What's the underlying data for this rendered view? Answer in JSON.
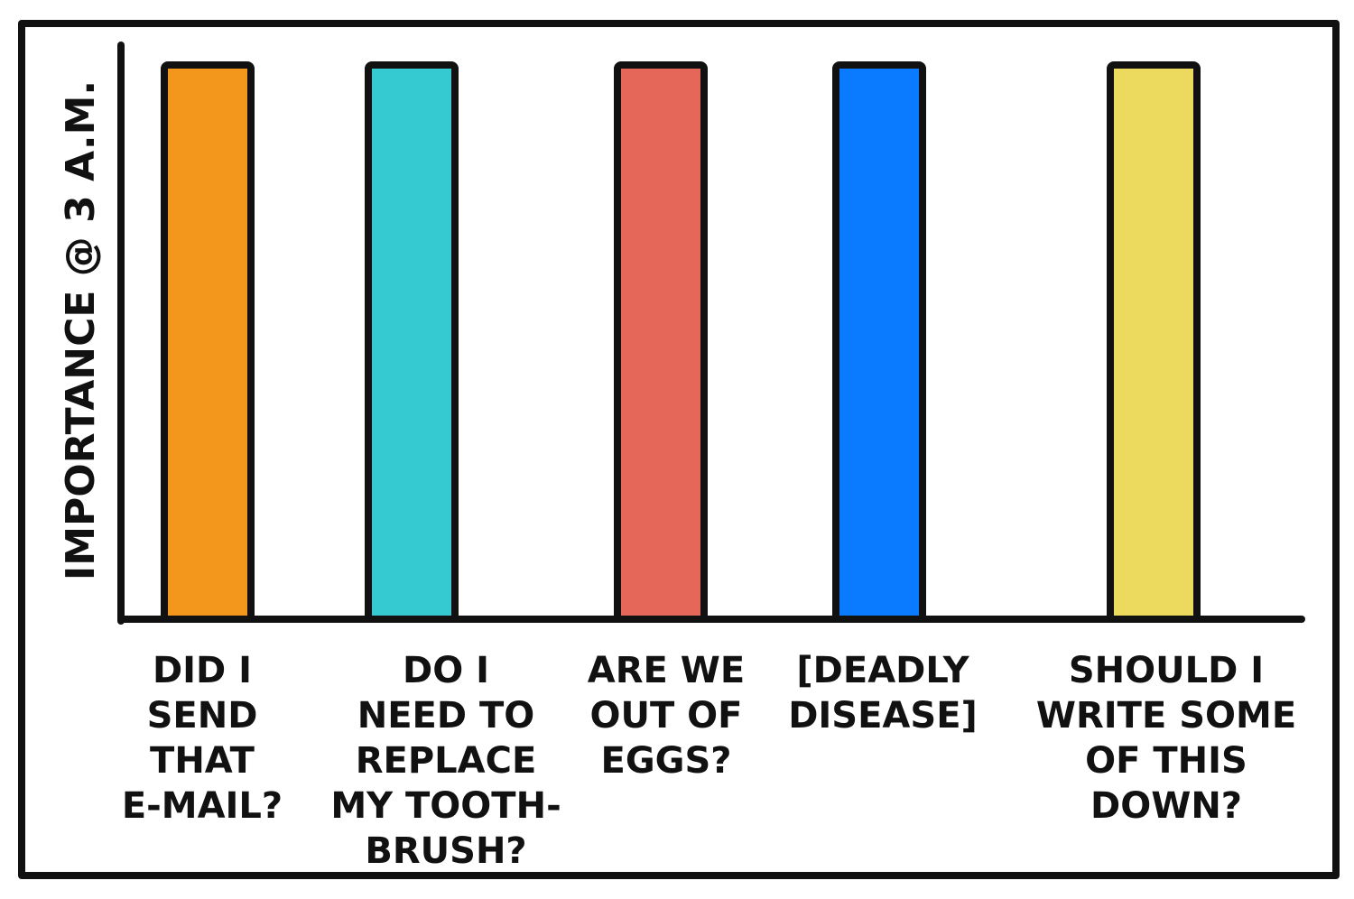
{
  "chart_data": {
    "type": "bar",
    "title": "",
    "xlabel": "",
    "ylabel": "IMPORTANCE @ 3 A.M.",
    "ylim": [
      0,
      100
    ],
    "grid": false,
    "categories": [
      "DID I SEND THAT E-MAIL?",
      "DO I NEED TO REPLACE MY TOOTH-BRUSH?",
      "ARE WE OUT OF EGGS?",
      "[DEADLY DISEASE]",
      "SHOULD I WRITE SOME OF THIS DOWN?"
    ],
    "category_lines": [
      [
        "DID I",
        "SEND",
        "THAT",
        "E-MAIL?"
      ],
      [
        "DO I",
        "NEED TO",
        "REPLACE",
        "MY TOOTH-",
        "BRUSH?"
      ],
      [
        "ARE WE",
        "OUT OF",
        "EGGS?"
      ],
      [
        "[DEADLY",
        "DISEASE]"
      ],
      [
        "SHOULD I",
        "WRITE SOME",
        "OF THIS",
        "DOWN?"
      ]
    ],
    "values": [
      100,
      100,
      100,
      100,
      100
    ],
    "colors": [
      "#F3961C",
      "#35C9D1",
      "#E4675A",
      "#0A7BFF",
      "#EBDA5E"
    ]
  }
}
